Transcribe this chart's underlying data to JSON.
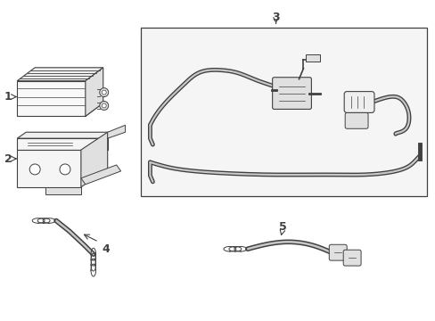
{
  "bg_color": "#ffffff",
  "line_color": "#404040",
  "fill_gray": "#efefef",
  "fill_mid": "#e0e0e0",
  "fill_dark": "#cccccc",
  "figsize": [
    4.89,
    3.6
  ],
  "dpi": 100,
  "label_fontsize": 9
}
